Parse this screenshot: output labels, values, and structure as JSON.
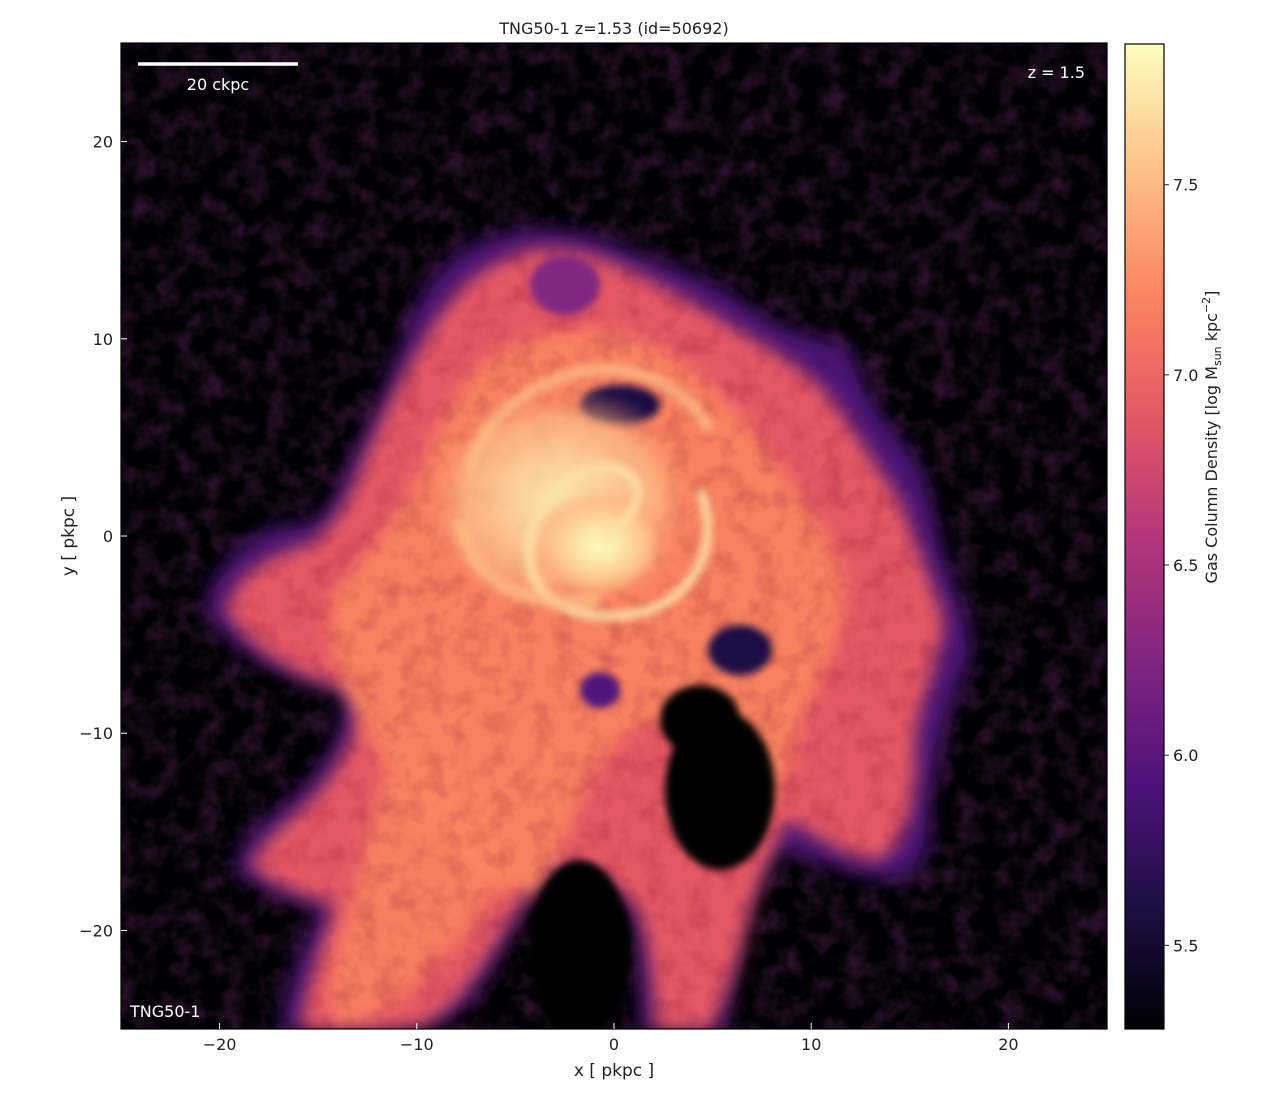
{
  "chart_data": {
    "type": "heatmap",
    "title": "TNG50-1 z=1.53 (id=50692)",
    "xlabel": "x [ pkpc ]",
    "ylabel": "y [ pkpc ]",
    "xlim": [
      -25,
      25
    ],
    "ylim": [
      -25,
      25
    ],
    "xticks": [
      -20,
      -10,
      0,
      10,
      20
    ],
    "yticks": [
      20,
      10,
      0,
      -10,
      -20
    ],
    "xtick_labels": [
      "−20",
      "−10",
      "0",
      "10",
      "20"
    ],
    "ytick_labels": [
      "20",
      "10",
      "0",
      "−10",
      "−20"
    ],
    "colormap": "magma",
    "background": "#000004",
    "scalebar": {
      "label": "20 ckpc",
      "length_ckpc": 20
    },
    "redshift_label": "z = 1.5",
    "simulation_label": "TNG50-1",
    "colorbar": {
      "label_main": "Gas Column Density [log M",
      "label_sub": "sun",
      "label_mid": " kpc",
      "label_sup": "−2",
      "label_end": "]",
      "range": [
        5.28,
        7.87
      ],
      "ticks": [
        5.5,
        6.0,
        6.5,
        7.0,
        7.5
      ],
      "tick_labels": [
        "5.5",
        "6.0",
        "6.5",
        "7.0",
        "7.5"
      ]
    },
    "grid": false
  }
}
